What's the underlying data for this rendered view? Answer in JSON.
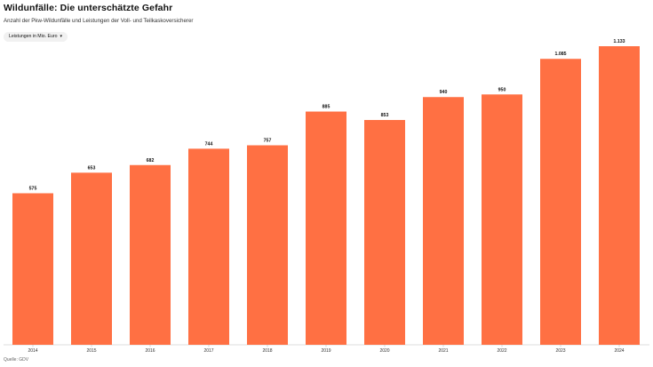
{
  "header": {
    "title": "Wildunfälle: Die unterschätzte Gefahr",
    "subtitle": "Anzahl der Pkw-Wildunfälle und Leistungen der Voll- und Teilkaskoversicherer"
  },
  "dropdown": {
    "selected": "Leistungen in Mio. Euro",
    "icon": "chevron-down-icon"
  },
  "footer": {
    "source": "Quelle: GDV"
  },
  "colors": {
    "bar": "#FF7043",
    "axis": "#BDBDBD"
  },
  "chart_data": {
    "type": "bar",
    "title": "Wildunfälle: Die unterschätzte Gefahr",
    "xlabel": "",
    "ylabel": "",
    "ylim": [
      0,
      1160
    ],
    "grid": false,
    "categories": [
      "2014",
      "2015",
      "2016",
      "2017",
      "2018",
      "2019",
      "2020",
      "2021",
      "2022",
      "2023",
      "2024"
    ],
    "values": [
      575,
      653,
      682,
      744,
      757,
      885,
      853,
      940,
      950,
      1085,
      1133
    ],
    "value_labels": [
      "575",
      "653",
      "682",
      "744",
      "757",
      "885",
      "853",
      "940",
      "950",
      "1.085",
      "1.133"
    ]
  }
}
